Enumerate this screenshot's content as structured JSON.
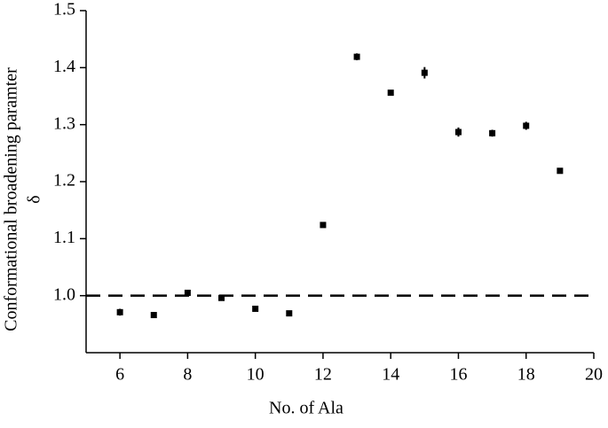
{
  "chart_data": {
    "type": "scatter",
    "xlabel": "No. of Ala",
    "ylabel": "Conformational broadening paramter",
    "ylabel_symbol": "δ",
    "x": [
      6,
      7,
      8,
      9,
      10,
      11,
      12,
      13,
      14,
      15,
      16,
      17,
      18,
      19
    ],
    "values": [
      0.971,
      0.966,
      1.005,
      0.996,
      0.977,
      0.969,
      1.124,
      1.419,
      1.356,
      1.391,
      1.287,
      1.285,
      1.298,
      1.219
    ],
    "errors": [
      0.006,
      0.003,
      0.003,
      0.003,
      0.004,
      0.003,
      0.003,
      0.006,
      0.003,
      0.01,
      0.008,
      0.006,
      0.007,
      0.003
    ],
    "color": "#000000",
    "xlim": [
      5,
      20
    ],
    "xticks": [
      6,
      8,
      10,
      12,
      14,
      16,
      18,
      20
    ],
    "ylim": [
      0.9,
      1.5
    ],
    "yticks": [
      {
        "value": 1,
        "label": "1.0"
      },
      1.1,
      1.2,
      1.3,
      1.4,
      1.5
    ],
    "reference_line": 1
  }
}
